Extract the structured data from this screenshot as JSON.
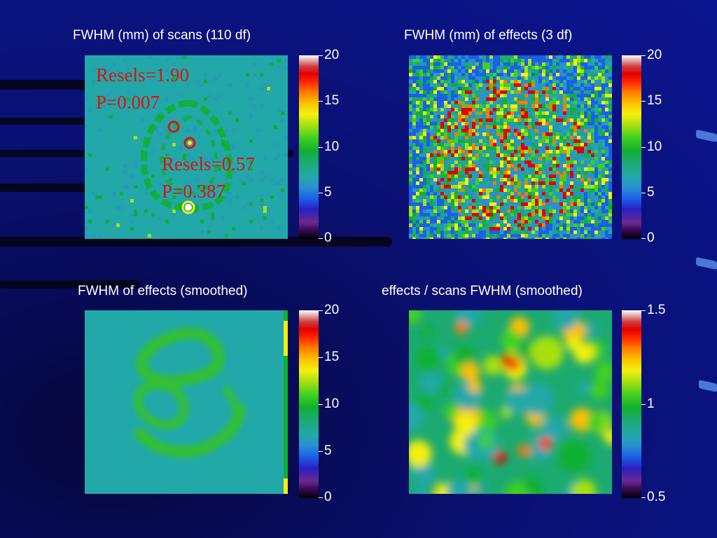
{
  "panels": {
    "p1": {
      "title": "FWHM (mm) of scans (110 df)",
      "ticks": [
        "20",
        "15",
        "10",
        "5",
        "0"
      ]
    },
    "p2": {
      "title": "FWHM (mm) of effects (3 df)",
      "ticks": [
        "20",
        "15",
        "10",
        "5",
        "0"
      ]
    },
    "p3": {
      "title": "FWHM of effects (smoothed)",
      "ticks": [
        "20",
        "15",
        "10",
        "5",
        "0"
      ]
    },
    "p4": {
      "title": "effects / scans FWHM (smoothed)",
      "ticks": [
        "1.5",
        "1",
        "0.5"
      ]
    }
  },
  "annotations": {
    "a1_line1": "Resels=1.90",
    "a1_line2": "P=0.007",
    "a2_line1": "Resels=0.57",
    "a2_line2": "P=0.387"
  },
  "colors": {
    "background": "#0b1590",
    "annotation": "#e01010",
    "map_base": "#22a8a8",
    "map_green": "#10b030"
  }
}
